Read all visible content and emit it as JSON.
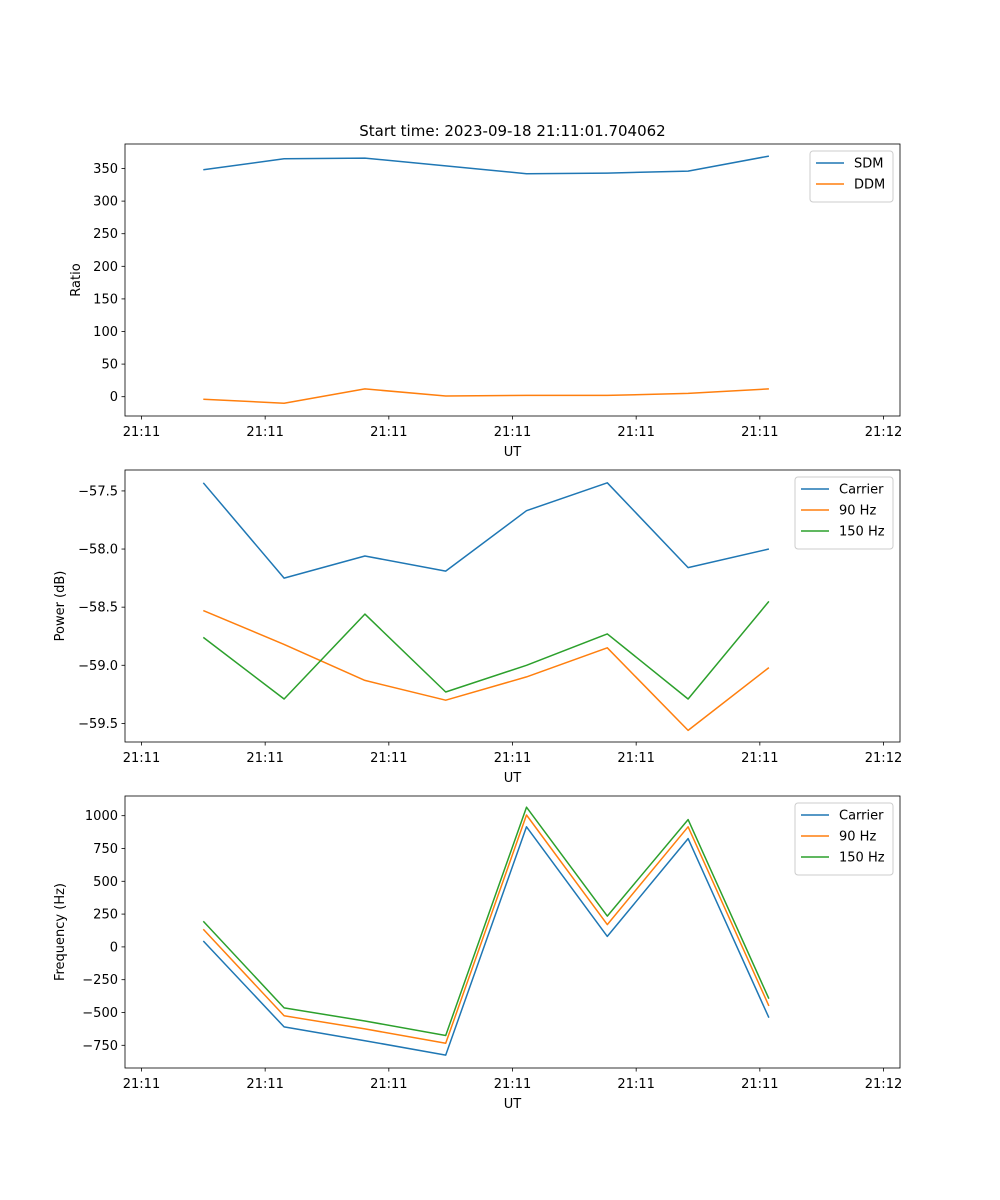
{
  "figure": {
    "title": "Start time: 2023-09-18 21:11:01.704062"
  },
  "chart_data": [
    {
      "type": "line",
      "xlabel": "UT",
      "ylabel": "Ratio",
      "x_tick_labels": [
        "21:11",
        "21:11",
        "21:11",
        "21:11",
        "21:11",
        "21:11",
        "21:12"
      ],
      "y_ticks": [
        0,
        50,
        100,
        150,
        200,
        250,
        300,
        350
      ],
      "y_tick_labels": [
        "0",
        "50",
        "100",
        "150",
        "200",
        "250",
        "300",
        "350"
      ],
      "ylim": [
        -29.6,
        387.6
      ],
      "legend": "top-right",
      "series": [
        {
          "name": "SDM",
          "color": "#1f77b4",
          "values": [
            348,
            365,
            366,
            354,
            342,
            343,
            346,
            369
          ]
        },
        {
          "name": "DDM",
          "color": "#ff7f0e",
          "values": [
            -4,
            -10,
            12,
            1,
            2,
            2,
            5,
            12
          ]
        }
      ]
    },
    {
      "type": "line",
      "xlabel": "UT",
      "ylabel": "Power (dB)",
      "x_tick_labels": [
        "21:11",
        "21:11",
        "21:11",
        "21:11",
        "21:11",
        "21:11",
        "21:12"
      ],
      "y_ticks": [
        -57.5,
        -58.0,
        -58.5,
        -59.0,
        -59.5
      ],
      "y_tick_labels": [
        "−57.5",
        "−58.0",
        "−58.5",
        "−59.0",
        "−59.5"
      ],
      "ylim": [
        -59.66,
        -57.32
      ],
      "legend": "top-right",
      "series": [
        {
          "name": "Carrier",
          "color": "#1f77b4",
          "values": [
            -57.43,
            -58.25,
            -58.06,
            -58.19,
            -57.67,
            -57.43,
            -58.16,
            -58.0
          ]
        },
        {
          "name": "90 Hz",
          "color": "#ff7f0e",
          "values": [
            -58.53,
            -58.82,
            -59.13,
            -59.3,
            -59.1,
            -58.85,
            -59.56,
            -59.02
          ]
        },
        {
          "name": "150 Hz",
          "color": "#2ca02c",
          "values": [
            -58.76,
            -59.29,
            -58.56,
            -59.23,
            -59.0,
            -58.73,
            -59.29,
            -58.45
          ]
        }
      ]
    },
    {
      "type": "line",
      "xlabel": "UT",
      "ylabel": "Frequency (Hz)",
      "x_tick_labels": [
        "21:11",
        "21:11",
        "21:11",
        "21:11",
        "21:11",
        "21:11",
        "21:12"
      ],
      "y_ticks": [
        1000,
        750,
        500,
        250,
        0,
        -250,
        -500,
        -750
      ],
      "y_tick_labels": [
        "1000",
        "750",
        "500",
        "250",
        "0",
        "−250",
        "−500",
        "−750"
      ],
      "ylim": [
        -923,
        1150
      ],
      "legend": "top-right",
      "series": [
        {
          "name": "Carrier",
          "color": "#1f77b4",
          "values": [
            45,
            -610,
            -715,
            -825,
            915,
            80,
            825,
            -540
          ]
        },
        {
          "name": "90 Hz",
          "color": "#ff7f0e",
          "values": [
            135,
            -525,
            -625,
            -735,
            1005,
            170,
            915,
            -450
          ]
        },
        {
          "name": "150 Hz",
          "color": "#2ca02c",
          "values": [
            195,
            -465,
            -565,
            -675,
            1065,
            235,
            970,
            -395
          ]
        }
      ]
    }
  ]
}
